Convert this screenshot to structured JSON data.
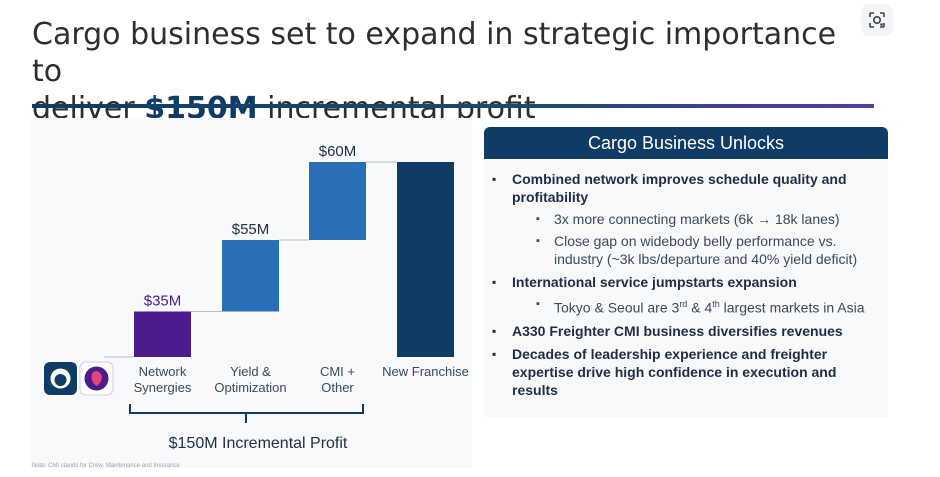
{
  "title": {
    "line1": "Cargo business set to expand in strategic importance to",
    "line2_prefix": "deliver ",
    "line2_highlight": "$150M",
    "line2_suffix": " incremental profit"
  },
  "colors": {
    "navy": "#0e3c64",
    "purple": "#4b1c8c",
    "blue": "#2a6fb5",
    "gray": "#a8a8a8"
  },
  "icons": {
    "lens": "google-lens-icon",
    "logo_1": "alaska-airlines-logo",
    "logo_2": "hawaiian-airlines-logo"
  },
  "chart_data": {
    "type": "bar",
    "subtype": "waterfall",
    "categories": [
      "",
      "Network Synergies",
      "Yield & Optimization",
      "CMI + Other",
      "New Franchise"
    ],
    "values": [
      null,
      35,
      55,
      60,
      150
    ],
    "value_labels": [
      "",
      "$35M",
      "$55M",
      "$60M",
      ""
    ],
    "units": "$M",
    "bracket_label": "$150M Incremental Profit",
    "bracket_spans": [
      "Network Synergies",
      "Yield & Optimization",
      "CMI + Other"
    ]
  },
  "panel": {
    "header": "Cargo Business Unlocks",
    "bullets": [
      {
        "text": "Combined network improves schedule quality and profitability",
        "sub": [
          "3x more connecting markets (6k → 18k lanes)",
          "Close gap on widebody belly performance vs. industry (~3k lbs/departure and 40% yield deficit)"
        ]
      },
      {
        "text": "International service jumpstarts expansion",
        "sub": [
          "Tokyo & Seoul are 3rd & 4th largest markets in Asia"
        ]
      },
      {
        "text": "A330 Freighter CMI business diversifies revenues",
        "sub": []
      },
      {
        "text": "Decades of leadership experience and freighter expertise drive high confidence in execution and results",
        "sub": []
      }
    ]
  },
  "footnote": "Note: CMI stands for Crew, Maintenance and Insurance"
}
